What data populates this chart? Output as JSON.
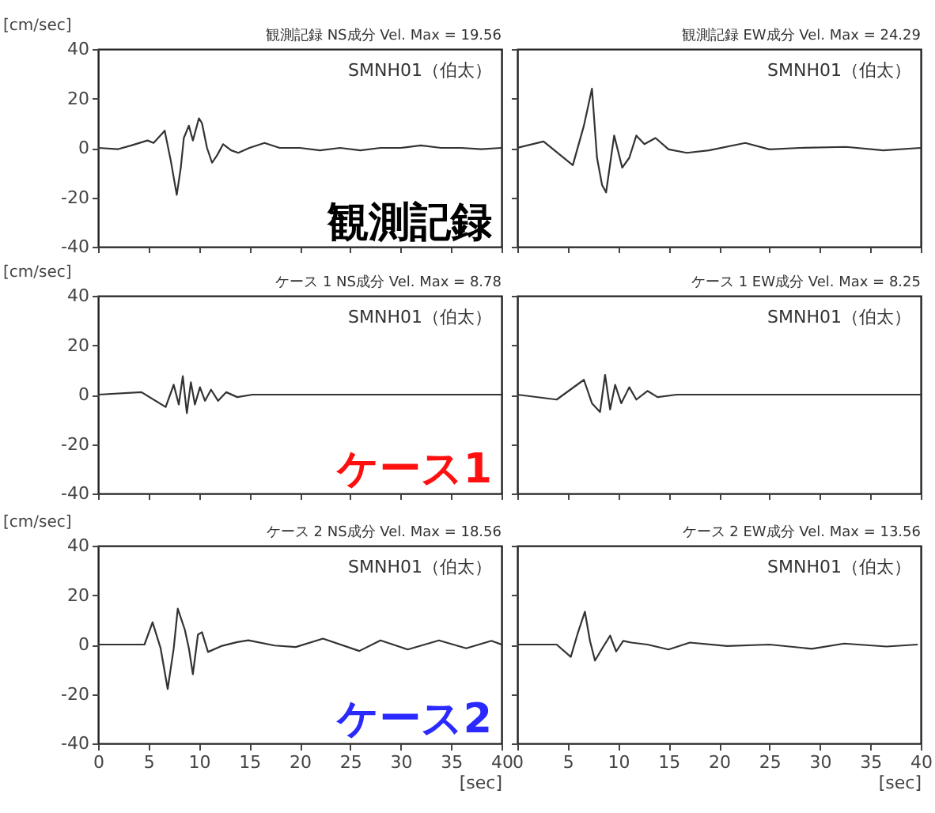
{
  "chart_data": [
    {
      "type": "line",
      "title": "観測記録  NS成分  Vel. Max = 19.56",
      "ylabel": "[cm/sec]",
      "xlim": [
        0,
        40
      ],
      "xticks": [
        0,
        5,
        10,
        15,
        20,
        25,
        30,
        35,
        40
      ],
      "ylim": [
        -40,
        40
      ],
      "yticks": [
        -40,
        -20,
        0,
        20,
        40
      ],
      "tick_labels": "y",
      "annotations": [
        "SMNH01（伯太）",
        "観測記録"
      ],
      "x": [
        0,
        2,
        3.3,
        4.9,
        5.5,
        6.4,
        6.6,
        7.2,
        7.8,
        8.2,
        8.5,
        9.0,
        9.4,
        10.0,
        10.3,
        10.8,
        11.3,
        11.8,
        12.4,
        13.2,
        13.9,
        15,
        16.5,
        18,
        20,
        22,
        24,
        26,
        28,
        30,
        32,
        34,
        36,
        38,
        40
      ],
      "series": [
        {
          "color": "#333333",
          "values": [
            0,
            -0.5,
            1,
            3,
            2,
            6,
            7,
            -5,
            -19,
            -8,
            4,
            9,
            3,
            12,
            10,
            0,
            -6,
            -3,
            1.5,
            -1,
            -2,
            0,
            2,
            0,
            0,
            -1,
            0,
            -1,
            0,
            0,
            1,
            0,
            0,
            -0.5,
            0
          ]
        }
      ]
    },
    {
      "type": "line",
      "title": "観測記録  EW成分  Vel. Max = 24.29",
      "xlim": [
        0,
        40
      ],
      "xticks": [
        0,
        5,
        10,
        15,
        20,
        25,
        30,
        35,
        40
      ],
      "ylim": [
        -40,
        40
      ],
      "yticks": [
        -40,
        -20,
        0,
        20,
        40
      ],
      "tick_labels": false,
      "annotations": [
        "SMNH01（伯太）"
      ],
      "x": [
        0,
        2.6,
        5.5,
        6.6,
        7.4,
        7.9,
        8.4,
        8.8,
        9.6,
        10.4,
        11.1,
        11.8,
        12.6,
        13.7,
        15,
        16.8,
        19,
        22.6,
        25,
        28,
        32.6,
        36.3,
        40
      ],
      "series": [
        {
          "color": "#333333",
          "values": [
            0,
            2.6,
            -7,
            9,
            24,
            -4,
            -15,
            -18,
            5,
            -8,
            -4,
            5,
            1.5,
            4,
            -0.6,
            -2,
            -1,
            2,
            -0.6,
            0,
            0.4,
            -1,
            0
          ]
        }
      ]
    },
    {
      "type": "line",
      "title": "ケース 1  NS成分  Vel. Max = 8.78",
      "ylabel": "[cm/sec]",
      "xlim": [
        0,
        40
      ],
      "xticks": [
        0,
        5,
        10,
        15,
        20,
        25,
        30,
        35,
        40
      ],
      "ylim": [
        -40,
        40
      ],
      "yticks": [
        -40,
        -20,
        0,
        20,
        40
      ],
      "tick_labels": "y",
      "annotations": [
        "SMNH01（伯太）",
        "ケース1"
      ],
      "x": [
        0,
        4.3,
        6.7,
        7.5,
        8.0,
        8.4,
        8.8,
        9.2,
        9.6,
        10.1,
        10.6,
        11.2,
        11.9,
        12.7,
        13.8,
        15.3,
        20,
        30,
        40
      ],
      "series": [
        {
          "color": "#333333",
          "values": [
            0,
            1,
            -5,
            4,
            -4,
            7.5,
            -7.5,
            5,
            -4,
            3,
            -2.5,
            2,
            -2.5,
            1,
            -1,
            0,
            0,
            0,
            0
          ]
        }
      ]
    },
    {
      "type": "line",
      "title": "ケース 1  EW成分  Vel. Max = 8.25",
      "xlim": [
        0,
        40
      ],
      "xticks": [
        0,
        5,
        10,
        15,
        20,
        25,
        30,
        35,
        40
      ],
      "ylim": [
        -40,
        40
      ],
      "yticks": [
        -40,
        -20,
        0,
        20,
        40
      ],
      "tick_labels": false,
      "annotations": [
        "SMNH01（伯太）"
      ],
      "x": [
        0,
        3.9,
        6.6,
        7.4,
        8.2,
        8.7,
        9.2,
        9.7,
        10.3,
        11.1,
        11.8,
        12.9,
        13.9,
        15.8,
        20,
        30,
        40
      ],
      "series": [
        {
          "color": "#333333",
          "values": [
            0,
            -2,
            6,
            -3.5,
            -7,
            8,
            -6,
            4,
            -3.5,
            3,
            -2,
            1.5,
            -1,
            0,
            0,
            0,
            0
          ]
        }
      ]
    },
    {
      "type": "line",
      "title": "ケース 2  NS成分  Vel. Max = 18.56",
      "xlabel": "[sec]",
      "ylabel": "[cm/sec]",
      "xlim": [
        0,
        40
      ],
      "xticks": [
        0,
        5,
        10,
        15,
        20,
        25,
        30,
        35,
        40
      ],
      "ylim": [
        -40,
        40
      ],
      "yticks": [
        -40,
        -20,
        0,
        20,
        40
      ],
      "annotations": [
        "SMNH01（伯太）",
        "ケース2"
      ],
      "x": [
        0,
        4.6,
        5.4,
        6.2,
        6.9,
        7.5,
        7.9,
        8.6,
        9.0,
        9.4,
        9.9,
        10.3,
        10.9,
        12.3,
        13.8,
        14.9,
        17.5,
        19.6,
        22.3,
        25.9,
        28,
        30.7,
        33.8,
        36.5,
        39,
        40
      ],
      "series": [
        {
          "color": "#333333",
          "values": [
            0,
            0,
            9,
            -1.5,
            -18,
            -1.5,
            14.5,
            6,
            -1.5,
            -12,
            4,
            5,
            -3,
            -0.5,
            1,
            1.7,
            -0.4,
            -1,
            2.4,
            -2.6,
            1.7,
            -2,
            1.7,
            -1.5,
            1.5,
            0
          ]
        }
      ]
    },
    {
      "type": "line",
      "title": "ケース 2  EW成分  Vel. Max = 13.56",
      "xlabel": "[sec]",
      "xlim": [
        0,
        40
      ],
      "xticks": [
        0,
        5,
        10,
        15,
        20,
        25,
        30,
        35,
        40
      ],
      "ylim": [
        -40,
        40
      ],
      "yticks": [
        -40,
        -20,
        0,
        20,
        40
      ],
      "tick_labels": "x",
      "annotations": [
        "SMNH01（伯太）"
      ],
      "x": [
        0,
        3.9,
        5.3,
        6.0,
        6.7,
        7.2,
        7.7,
        8.4,
        9.2,
        9.8,
        10.5,
        11.3,
        12.9,
        15,
        17.1,
        20.8,
        25,
        29.2,
        32.4,
        36.6,
        39.7
      ],
      "series": [
        {
          "color": "#333333",
          "values": [
            0,
            0,
            -5,
            4.7,
            13.3,
            1.5,
            -6.5,
            -1.7,
            3.6,
            -2.8,
            1.5,
            0.8,
            0,
            -2,
            0.8,
            -0.6,
            0,
            -1.7,
            0.4,
            -0.8,
            0
          ]
        }
      ]
    }
  ]
}
